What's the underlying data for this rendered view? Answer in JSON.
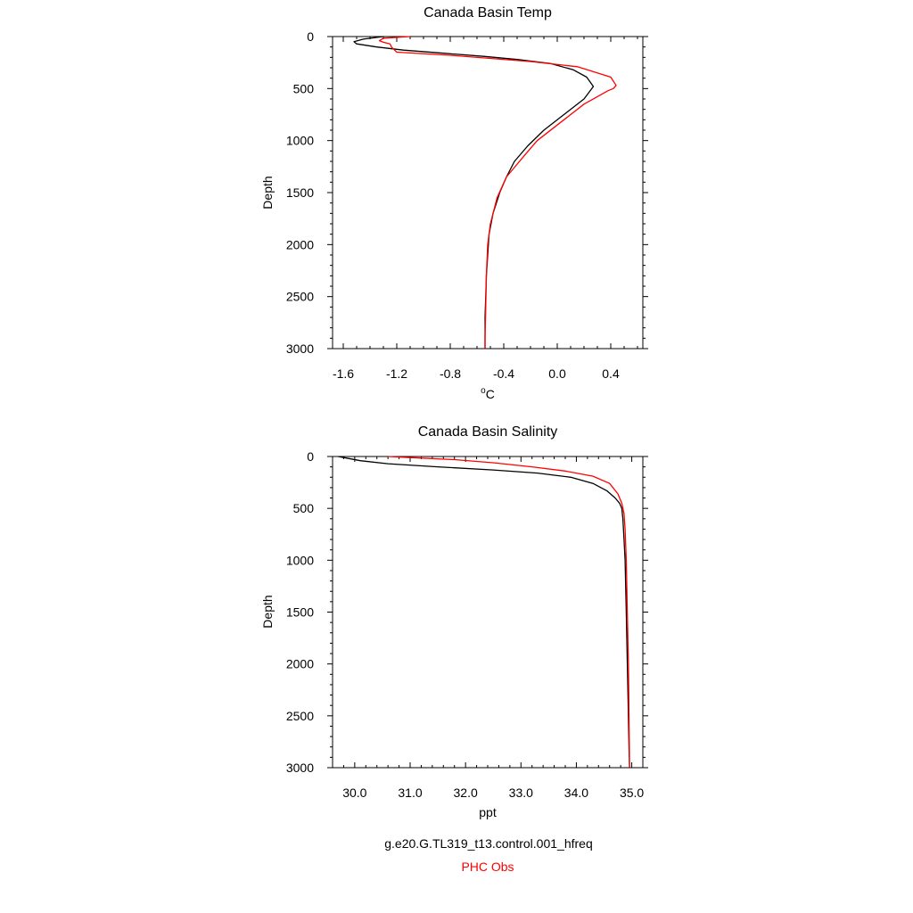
{
  "chart_data": [
    {
      "type": "line",
      "title": "Canada Basin Temp",
      "xlabel": "oC",
      "xlabel_parts": {
        "superscript": "o",
        "main": "C"
      },
      "ylabel": "Depth",
      "xlim": [
        -1.68,
        0.64
      ],
      "ylim": [
        3000,
        0
      ],
      "y_inverted": true,
      "xticks": [
        -1.6,
        -1.2,
        -0.8,
        -0.4,
        0.0,
        0.4
      ],
      "xtick_labels": [
        "-1.6",
        "-1.2",
        "-0.8",
        "-0.4",
        "0.0",
        "0.4"
      ],
      "yticks": [
        0,
        500,
        1000,
        1500,
        2000,
        2500,
        3000
      ],
      "ytick_labels": [
        "0",
        "500",
        "1000",
        "1500",
        "2000",
        "2500",
        "3000"
      ],
      "grid": false,
      "series": [
        {
          "name": "g.e20.G.TL319_t13.control.001_hfreq",
          "color": "#000000",
          "x": [
            -1.3,
            -1.45,
            -1.52,
            -1.5,
            -1.35,
            -1.15,
            -0.85,
            -0.55,
            -0.3,
            -0.05,
            0.12,
            0.22,
            0.27,
            0.2,
            0.05,
            -0.1,
            -0.22,
            -0.32,
            -0.38,
            -0.43,
            -0.48,
            -0.51,
            -0.52,
            -0.53,
            -0.535,
            -0.54,
            -0.54,
            -0.54
          ],
          "y": [
            0,
            25,
            50,
            70,
            100,
            130,
            160,
            190,
            220,
            260,
            320,
            390,
            480,
            600,
            750,
            900,
            1050,
            1200,
            1350,
            1500,
            1700,
            1900,
            2100,
            2300,
            2500,
            2700,
            2900,
            3000
          ]
        },
        {
          "name": "PHC Obs",
          "color": "#ff0000",
          "x": [
            -1.1,
            -1.3,
            -1.33,
            -1.3,
            -1.25,
            -1.24,
            -1.2,
            -0.8,
            -0.5,
            -0.2,
            0.15,
            0.4,
            0.44,
            0.42,
            0.38,
            0.2,
            0.0,
            -0.15,
            -0.25,
            -0.38,
            -0.45,
            -0.5,
            -0.52,
            -0.53,
            -0.535,
            -0.54,
            -0.54
          ],
          "y": [
            0,
            15,
            40,
            55,
            70,
            100,
            150,
            180,
            210,
            240,
            290,
            390,
            470,
            500,
            520,
            650,
            850,
            1000,
            1150,
            1350,
            1550,
            1800,
            2000,
            2300,
            2600,
            2900,
            3000
          ]
        }
      ]
    },
    {
      "type": "line",
      "title": "Canada Basin Salinity",
      "xlabel": "ppt",
      "ylabel": "Depth",
      "xlim": [
        29.6,
        35.2
      ],
      "ylim": [
        3000,
        0
      ],
      "y_inverted": true,
      "xticks": [
        30.0,
        31.0,
        32.0,
        33.0,
        34.0,
        35.0
      ],
      "xtick_labels": [
        "30.0",
        "31.0",
        "32.0",
        "33.0",
        "34.0",
        "35.0"
      ],
      "yticks": [
        0,
        500,
        1000,
        1500,
        2000,
        2500,
        3000
      ],
      "ytick_labels": [
        "0",
        "500",
        "1000",
        "1500",
        "2000",
        "2500",
        "3000"
      ],
      "grid": false,
      "series": [
        {
          "name": "g.e20.G.TL319_t13.control.001_hfreq",
          "color": "#000000",
          "x": [
            29.7,
            29.9,
            30.1,
            30.6,
            31.5,
            32.5,
            33.3,
            33.9,
            34.3,
            34.55,
            34.7,
            34.78,
            34.82,
            34.84,
            34.86,
            34.88,
            34.9,
            34.92,
            34.94,
            34.95,
            34.96
          ],
          "y": [
            0,
            20,
            40,
            70,
            100,
            130,
            160,
            200,
            260,
            330,
            400,
            450,
            500,
            600,
            800,
            1000,
            1500,
            2000,
            2500,
            2800,
            3000
          ]
        },
        {
          "name": "PHC Obs",
          "color": "#ff0000",
          "x": [
            30.6,
            31.0,
            31.8,
            32.5,
            33.2,
            33.8,
            34.3,
            34.6,
            34.75,
            34.82,
            34.86,
            34.88,
            34.9,
            34.92,
            34.94,
            34.95,
            34.96
          ],
          "y": [
            0,
            10,
            30,
            60,
            100,
            140,
            190,
            260,
            360,
            450,
            550,
            700,
            1000,
            1500,
            2000,
            2500,
            3000
          ]
        }
      ]
    }
  ],
  "legend": {
    "items": [
      {
        "label": "g.e20.G.TL319_t13.control.001_hfreq",
        "color": "#000000"
      },
      {
        "label": "PHC Obs",
        "color": "#ff0000"
      }
    ]
  }
}
